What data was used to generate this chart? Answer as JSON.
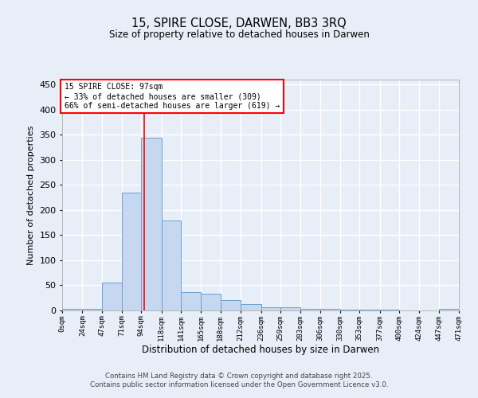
{
  "title": "15, SPIRE CLOSE, DARWEN, BB3 3RQ",
  "subtitle": "Size of property relative to detached houses in Darwen",
  "xlabel": "Distribution of detached houses by size in Darwen",
  "ylabel": "Number of detached properties",
  "bin_edges": [
    0,
    24,
    47,
    71,
    94,
    118,
    141,
    165,
    188,
    212,
    236,
    259,
    283,
    306,
    330,
    353,
    377,
    400,
    424,
    447,
    471
  ],
  "bin_labels": [
    "0sqm",
    "24sqm",
    "47sqm",
    "71sqm",
    "94sqm",
    "118sqm",
    "141sqm",
    "165sqm",
    "188sqm",
    "212sqm",
    "236sqm",
    "259sqm",
    "283sqm",
    "306sqm",
    "330sqm",
    "353sqm",
    "377sqm",
    "400sqm",
    "424sqm",
    "447sqm",
    "471sqm"
  ],
  "bar_heights": [
    3,
    3,
    55,
    235,
    345,
    180,
    37,
    33,
    20,
    12,
    6,
    7,
    3,
    3,
    2,
    1,
    1,
    0,
    0,
    3
  ],
  "bar_color": "#c5d8f0",
  "bar_edge_color": "#6b9fd4",
  "property_size": 97,
  "property_line_color": "red",
  "annotation_text": "15 SPIRE CLOSE: 97sqm\n← 33% of detached houses are smaller (309)\n66% of semi-detached houses are larger (619) →",
  "annotation_box_color": "white",
  "annotation_box_edge_color": "red",
  "ylim": [
    0,
    460
  ],
  "xlim": [
    0,
    471
  ],
  "yticks": [
    0,
    50,
    100,
    150,
    200,
    250,
    300,
    350,
    400,
    450
  ],
  "background_color": "#e8eef8",
  "grid_color": "white",
  "footer_line1": "Contains HM Land Registry data © Crown copyright and database right 2025.",
  "footer_line2": "Contains public sector information licensed under the Open Government Licence v3.0."
}
